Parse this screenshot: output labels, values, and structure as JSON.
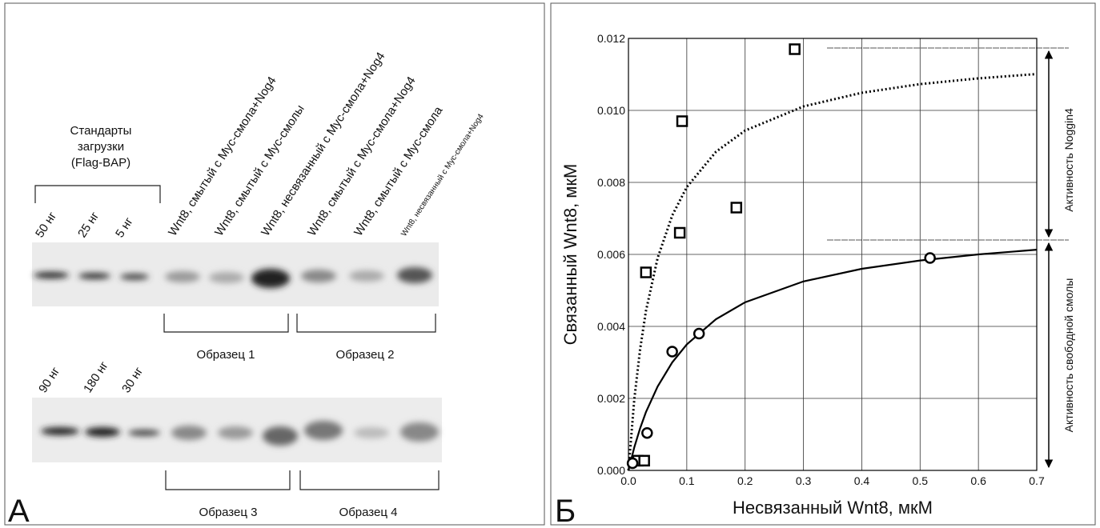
{
  "panel_a": {
    "label": "А",
    "standards_title": [
      "Стандарты",
      "загрузки",
      "(Flag-BAP)"
    ],
    "top_lanes": [
      "50 нг",
      "25 нг",
      "5 нг",
      "Wnt8, смытый с Myc-смола+Nog4",
      "Wnt8, смытый с Myc-смолы",
      "Wnt8, несвязанный с Myc-смола+Nog4",
      "Wnt8, смытый с Myc-смола+Nog4",
      "Wnt8, смытый с Myc-смола",
      "Wnt8, несвязанный с Myc-смола+Nog4"
    ],
    "top_samples": [
      "Образец 1",
      "Образец 2"
    ],
    "bottom_lanes": [
      "90 нг",
      "180 нг",
      "30 нг"
    ],
    "bottom_samples": [
      "Образец 3",
      "Образец 4"
    ]
  },
  "panel_b_label": "Б",
  "annotations": [
    "Активность Noggin4",
    "Активность свободной смолы"
  ],
  "chart_data": {
    "type": "scatter",
    "x_label": "Несвязанный Wnt8, мкМ",
    "y_label": "Связанный Wnt8, мкМ",
    "xlim": [
      0,
      0.7
    ],
    "ylim": [
      0,
      0.012
    ],
    "xticks": [
      {
        "value": 0,
        "label": "0.0"
      },
      0.1,
      0.2,
      0.3,
      0.4,
      0.5,
      0.6,
      0.7
    ],
    "yticks": [
      {
        "value": 0,
        "label": "0.000"
      },
      {
        "value": 0.002,
        "label": "0.002"
      },
      {
        "value": 0.004,
        "label": "0.004"
      },
      {
        "value": 0.006,
        "label": "0.006"
      },
      {
        "value": 0.008,
        "label": "0.008"
      },
      {
        "value": 0.01,
        "label": "0.010"
      },
      {
        "value": 0.012,
        "label": "0.012"
      }
    ],
    "grid": true,
    "series": [
      {
        "type": "scatter",
        "marker": "square",
        "color": "#000000",
        "x": [
          0.016,
          0.027,
          0.03,
          0.088,
          0.092,
          0.185,
          0.285
        ],
        "values": [
          0.00027,
          0.00027,
          0.0055,
          0.0066,
          0.0097,
          0.0073,
          0.0117
        ]
      },
      {
        "type": "scatter",
        "marker": "circle",
        "color": "#000000",
        "x": [
          0.007,
          0.032,
          0.075,
          0.121,
          0.517
        ],
        "values": [
          0.0002,
          0.00104,
          0.0033,
          0.0038,
          0.0059
        ]
      },
      {
        "type": "line",
        "style": "dotted",
        "color": "#000000",
        "x": [
          0,
          0.01,
          0.02,
          0.03,
          0.05,
          0.075,
          0.1,
          0.15,
          0.2,
          0.3,
          0.4,
          0.5,
          0.6,
          0.7
        ],
        "values": [
          0,
          0.00197,
          0.00337,
          0.00443,
          0.0059,
          0.00708,
          0.00787,
          0.00885,
          0.00944,
          0.01011,
          0.01049,
          0.01073,
          0.01089,
          0.01101
        ]
      },
      {
        "type": "line",
        "style": "solid",
        "color": "#000000",
        "x": [
          0,
          0.01,
          0.02,
          0.03,
          0.05,
          0.075,
          0.1,
          0.15,
          0.2,
          0.3,
          0.4,
          0.5,
          0.6,
          0.7
        ],
        "values": [
          0,
          0.00064,
          0.00117,
          0.00162,
          0.00233,
          0.003,
          0.0035,
          0.0042,
          0.00467,
          0.00525,
          0.0056,
          0.00583,
          0.006,
          0.00613
        ]
      }
    ]
  }
}
